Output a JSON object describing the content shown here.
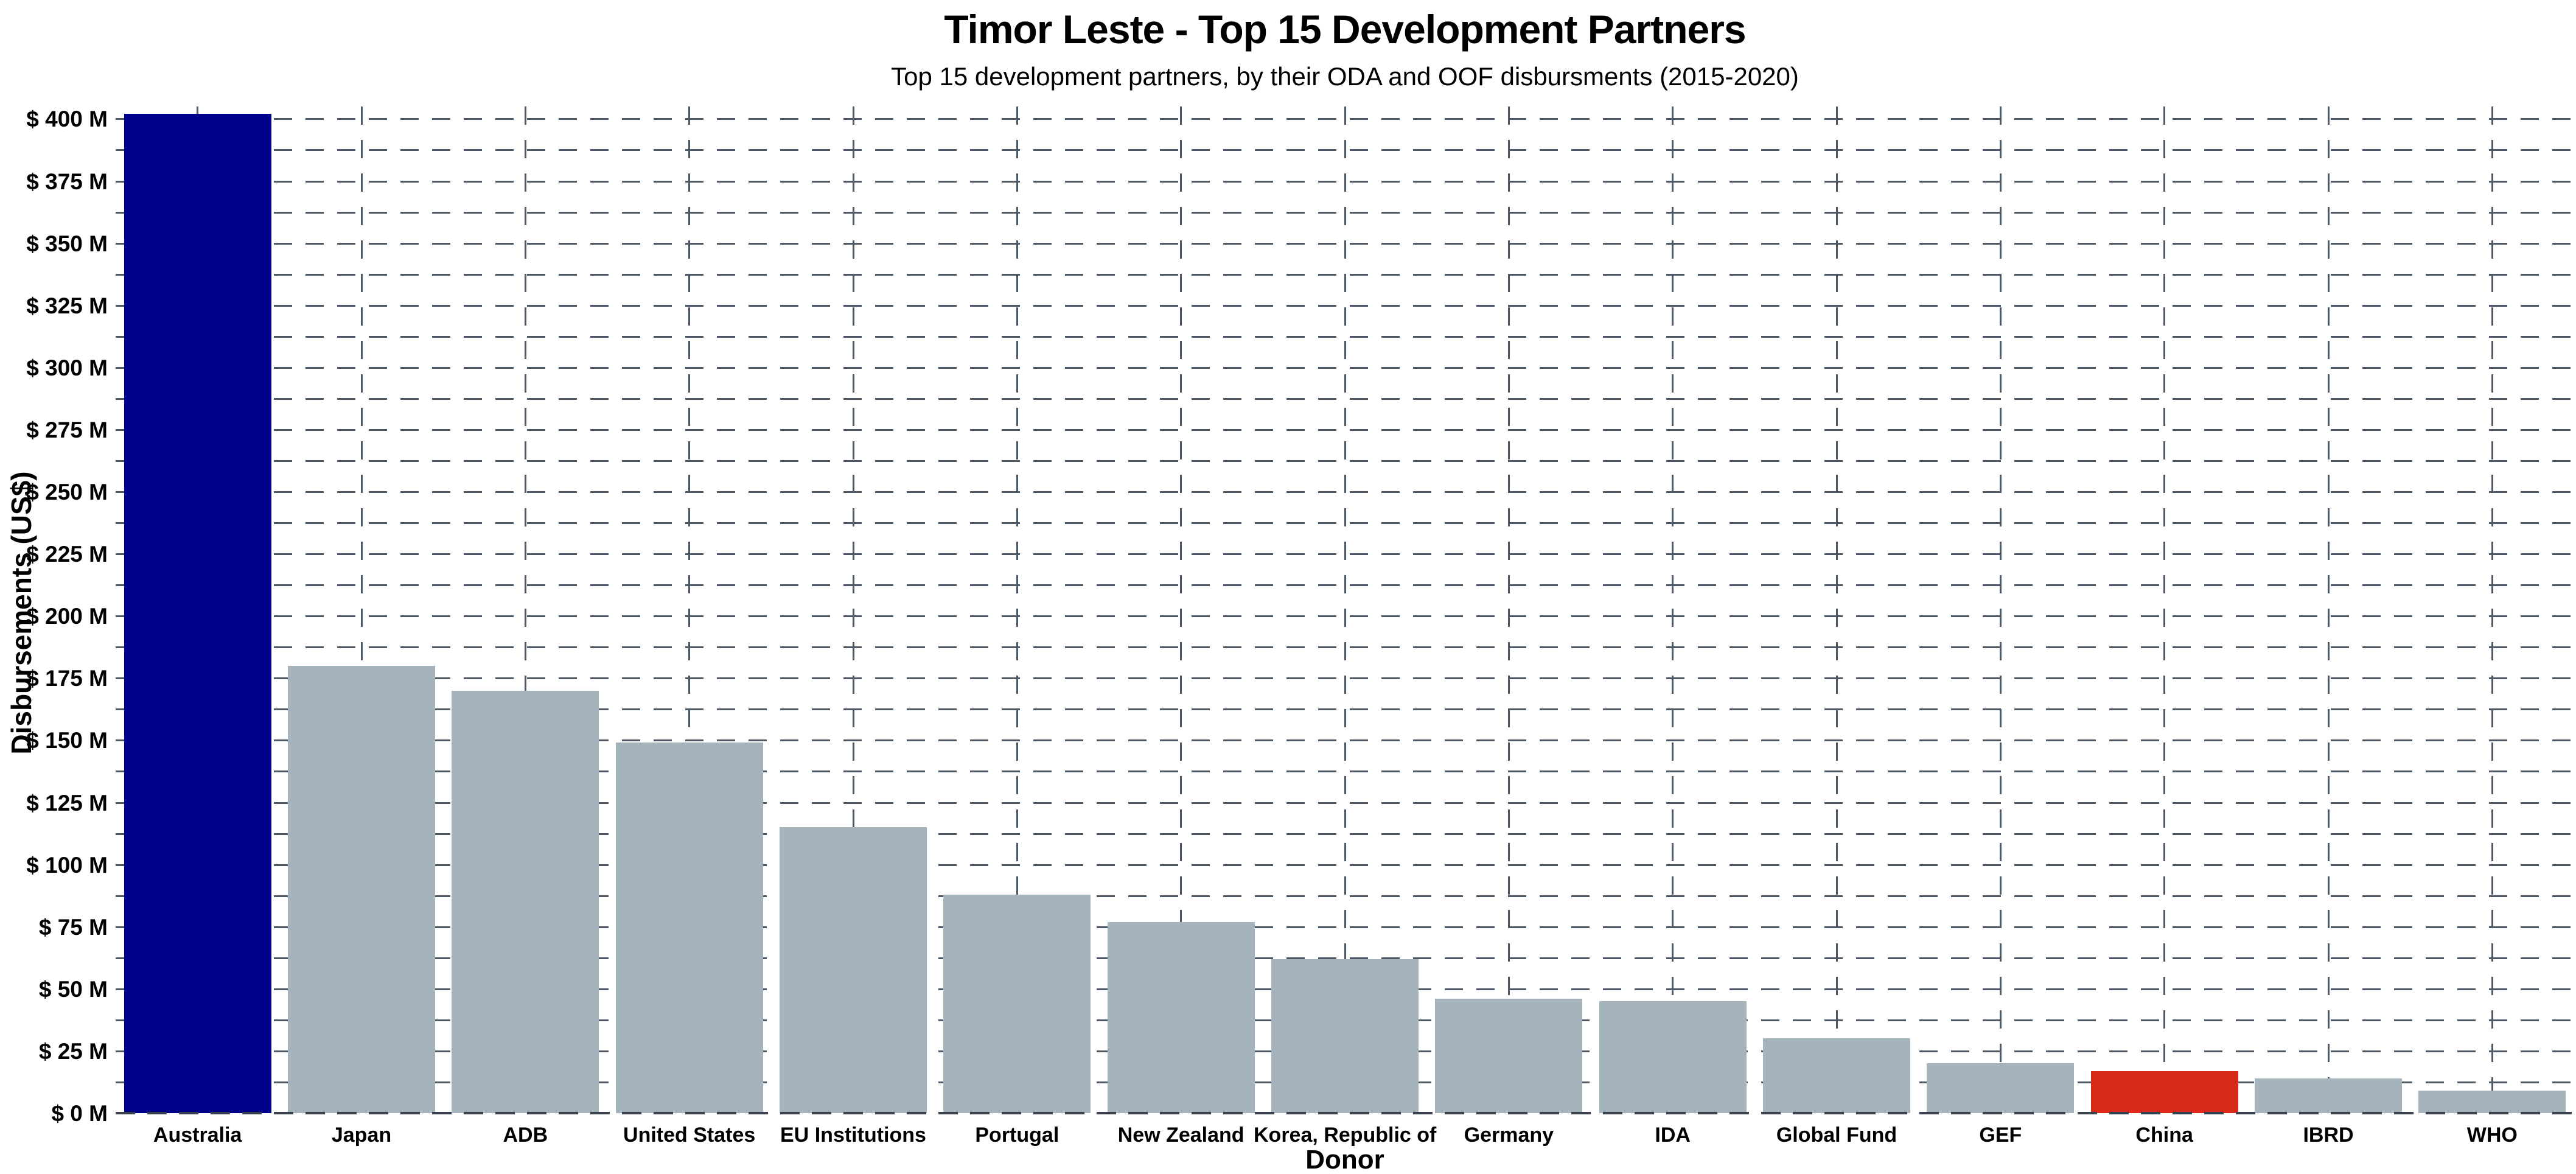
{
  "chart_data": {
    "type": "bar",
    "title": "Timor Leste - Top 15 Development Partners",
    "subtitle": "Top 15 development partners, by their ODA and OOF disbursments (2015-2020)",
    "xlabel": "Donor",
    "ylabel": "Disbursements (US$)",
    "categories": [
      "Australia",
      "Japan",
      "ADB",
      "United States",
      "EU Institutions",
      "Portugal",
      "New Zealand",
      "Korea, Republic of",
      "Germany",
      "IDA",
      "Global Fund",
      "GEF",
      "China",
      "IBRD",
      "WHO"
    ],
    "values": [
      402,
      180,
      170,
      149,
      115,
      88,
      77,
      62,
      46,
      45,
      30,
      20,
      17,
      14,
      9
    ],
    "values_unit": "USD millions",
    "bar_colors": [
      "#00008B",
      "#A5B3BC",
      "#A5B3BC",
      "#A5B3BC",
      "#A5B3BC",
      "#A5B3BC",
      "#A5B3BC",
      "#A5B3BC",
      "#A5B3BC",
      "#A5B3BC",
      "#A5B3BC",
      "#A5B3BC",
      "#D92B1A",
      "#A5B3BC",
      "#A5B3BC"
    ],
    "highlight_colors": {
      "accent_navy": "#00008B",
      "accent_red": "#D92B1A",
      "default_gray": "#A5B3BC"
    },
    "ylim": [
      0,
      405
    ],
    "yticks": [
      0,
      25,
      50,
      75,
      100,
      125,
      150,
      175,
      200,
      225,
      250,
      275,
      300,
      325,
      350,
      375,
      400
    ],
    "ytick_labels": [
      "$ 0 M",
      "$ 25 M",
      "$ 50 M",
      "$ 75 M",
      "$ 100 M",
      "$ 125 M",
      "$ 150 M",
      "$ 175 M",
      "$ 200 M",
      "$ 225 M",
      "$ 250 M",
      "$ 275 M",
      "$ 300 M",
      "$ 325 M",
      "$ 350 M",
      "$ 375 M",
      "$ 400 M"
    ],
    "minor_grid_step": 12.5,
    "grid": {
      "style": "dashed",
      "color": "#4d5866",
      "horizontal": "every 12.5M",
      "vertical": "at bar centers",
      "legend": "none"
    }
  }
}
